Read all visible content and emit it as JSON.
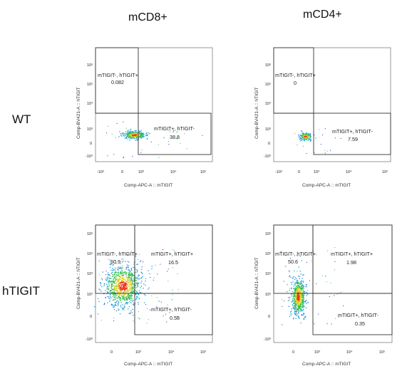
{
  "columns": [
    "mCD8+",
    "mCD4+"
  ],
  "rows": [
    "WT",
    "hTIGIT"
  ],
  "x_axis_label": "Comp-APC-A :: mTIGIT",
  "y_axis_label": "Comp-BV421-A :: hTIGIT",
  "x_ticks": [
    "-10³",
    "0",
    "10³",
    "10⁴",
    "10⁵"
  ],
  "y_ticks": [
    "10⁶",
    "10⁵",
    "10⁴",
    "10³",
    "0",
    "-10³"
  ],
  "panels": [
    {
      "row": "WT",
      "column": "mCD8+",
      "gates": [
        {
          "label": "mTIGIT-, hTIGIT+",
          "value": "0.082"
        },
        {
          "label": "mTIGIT+, hTIGIT-",
          "value": "38.8"
        }
      ]
    },
    {
      "row": "WT",
      "column": "mCD4+",
      "gates": [
        {
          "label": "mTIGIT-, hTIGIT+",
          "value": "0"
        },
        {
          "label": "mTIGIT+, hTIGIT-",
          "value": "7.59"
        }
      ]
    },
    {
      "row": "hTIGIT",
      "column": "mCD8+",
      "gates": [
        {
          "label": "mTIGIT-, hTIGIT+",
          "value": "60.9"
        },
        {
          "label": "mTIGIT+, hTIGIT+",
          "value": "16.5"
        },
        {
          "label": "mTIGIT+, hTIGIT-",
          "value": "0.58"
        }
      ]
    },
    {
      "row": "hTIGIT",
      "column": "mCD4+",
      "gates": [
        {
          "label": "mTIGIT-, hTIGIT+",
          "value": "50.6"
        },
        {
          "label": "mTIGIT+, hTIGIT+",
          "value": "1.98"
        },
        {
          "label": "mTIGIT+, hTIGIT-",
          "value": "0.35"
        }
      ]
    }
  ]
}
